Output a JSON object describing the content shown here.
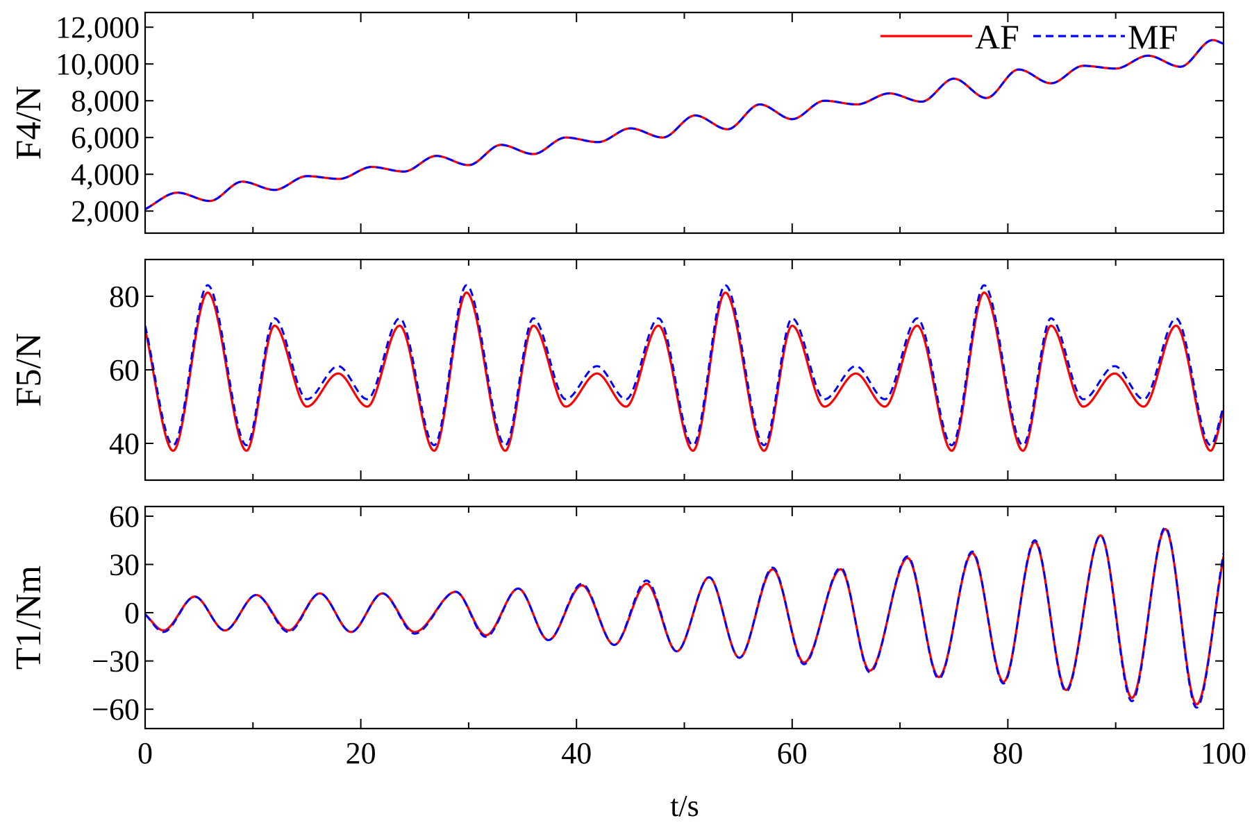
{
  "chart_data": [
    {
      "type": "line",
      "panel": "top",
      "xlabel": "",
      "ylabel": "F4/N",
      "xlim": [
        0,
        100
      ],
      "ylim": [
        800,
        12800
      ],
      "yticks": [
        2000,
        4000,
        6000,
        8000,
        10000,
        12000
      ],
      "ytick_labels": [
        "2,000",
        "4,000",
        "6,000",
        "8,000",
        "10,000",
        "12,000"
      ],
      "xticks": [
        0,
        20,
        40,
        60,
        80,
        100
      ],
      "legend": {
        "placement": "top-right",
        "entries": [
          "AF",
          "MF"
        ]
      },
      "x": [
        0,
        3,
        6,
        9,
        12,
        15,
        18,
        21,
        24,
        27,
        30,
        33,
        36,
        39,
        42,
        45,
        48,
        51,
        54,
        57,
        60,
        63,
        66,
        69,
        72,
        75,
        78,
        81,
        84,
        87,
        90,
        93,
        96,
        99,
        100
      ],
      "series": [
        {
          "name": "AF",
          "color": "#ff0000",
          "style": "solid",
          "values": [
            2100,
            3000,
            2550,
            3600,
            3150,
            3900,
            3750,
            4400,
            4150,
            5000,
            4500,
            5600,
            5100,
            6000,
            5750,
            6500,
            6000,
            7200,
            6450,
            7800,
            7000,
            8000,
            7800,
            8400,
            7950,
            9200,
            8150,
            9700,
            8950,
            9900,
            9750,
            10450,
            9850,
            11300,
            11100
          ]
        },
        {
          "name": "MF",
          "color": "#0000ff",
          "style": "dashed",
          "values": [
            2100,
            3000,
            2550,
            3600,
            3150,
            3900,
            3750,
            4400,
            4150,
            5000,
            4500,
            5600,
            5100,
            6000,
            5750,
            6500,
            6000,
            7200,
            6450,
            7800,
            7000,
            8000,
            7800,
            8400,
            7950,
            9200,
            8150,
            9700,
            8950,
            9900,
            9750,
            10450,
            9850,
            11300,
            11100
          ]
        }
      ]
    },
    {
      "type": "line",
      "panel": "middle",
      "xlabel": "",
      "ylabel": "F5/N",
      "xlim": [
        0,
        100
      ],
      "ylim": [
        30,
        90
      ],
      "yticks": [
        40,
        60,
        80
      ],
      "ytick_labels": [
        "40",
        "60",
        "80"
      ],
      "xticks": [
        0,
        20,
        40,
        60,
        80,
        100
      ],
      "x": [
        0,
        2.6,
        5.8,
        9.4,
        12.0,
        15.0,
        17.9,
        20.6,
        23.6,
        26.8,
        29.8,
        33.4,
        36.0,
        39.0,
        41.9,
        44.6,
        47.6,
        50.8,
        53.8,
        57.4,
        60.0,
        63.0,
        65.9,
        68.6,
        71.6,
        74.8,
        77.8,
        81.4,
        84.0,
        87.0,
        89.9,
        92.6,
        95.6,
        98.8,
        100
      ],
      "series": [
        {
          "name": "AF",
          "color": "#ff0000",
          "style": "solid",
          "values": [
            71,
            38,
            81,
            38,
            72,
            50,
            59,
            50,
            72,
            38,
            81,
            38,
            72,
            50,
            59,
            50,
            72,
            38,
            81,
            38,
            72,
            50,
            59,
            50,
            72,
            38,
            81,
            38,
            72,
            50,
            59,
            50,
            72,
            38,
            49
          ]
        },
        {
          "name": "MF",
          "color": "#0000ff",
          "style": "dashed",
          "values": [
            72,
            39.5,
            83,
            39.5,
            74,
            52,
            61,
            52,
            74,
            39.5,
            83,
            39.5,
            74,
            52,
            61,
            52,
            74,
            39.5,
            83,
            39.5,
            74,
            52,
            61,
            52,
            74,
            39.5,
            83,
            39.5,
            74,
            52,
            61,
            52,
            74,
            39.5,
            50
          ]
        }
      ]
    },
    {
      "type": "line",
      "panel": "bottom",
      "xlabel": "t/s",
      "ylabel": "T1/Nm",
      "xlim": [
        0,
        100
      ],
      "ylim": [
        -72,
        66
      ],
      "yticks": [
        -60,
        -30,
        0,
        30,
        60
      ],
      "ytick_labels": [
        "−60",
        "−30",
        "0",
        "30",
        "60"
      ],
      "xticks": [
        0,
        20,
        40,
        60,
        80,
        100
      ],
      "xtick_labels": [
        "0",
        "20",
        "40",
        "60",
        "80",
        "100"
      ],
      "x": [
        0,
        1.7,
        4.6,
        7.4,
        10.3,
        13.3,
        16.2,
        19.1,
        22.0,
        25.0,
        28.8,
        31.6,
        34.6,
        37.4,
        40.5,
        43.5,
        46.5,
        49.3,
        52.3,
        55.1,
        58.2,
        61.1,
        64.5,
        67.2,
        70.7,
        73.6,
        76.7,
        79.6,
        82.5,
        85.4,
        88.6,
        91.5,
        94.6,
        97.5,
        100
      ],
      "series": [
        {
          "name": "AF",
          "color": "#ff0000",
          "style": "solid",
          "values": [
            -1,
            -11,
            10,
            -11,
            11,
            -11,
            12,
            -12,
            12,
            -12,
            13,
            -14,
            15,
            -17,
            17,
            -20,
            18,
            -24,
            22,
            -28,
            27,
            -31,
            27,
            -36,
            34,
            -40,
            37,
            -43,
            44,
            -48,
            48,
            -53,
            52,
            -57,
            35
          ]
        },
        {
          "name": "MF",
          "color": "#0000ff",
          "style": "dashed",
          "values": [
            -1,
            -12,
            10,
            -11,
            11,
            -12,
            12,
            -12,
            12,
            -13,
            13,
            -15,
            15,
            -17,
            18,
            -20,
            20,
            -24,
            22,
            -28,
            28,
            -32,
            28,
            -37,
            35,
            -41,
            38,
            -44,
            45,
            -49,
            48,
            -55,
            53,
            -59,
            37
          ]
        }
      ]
    }
  ]
}
